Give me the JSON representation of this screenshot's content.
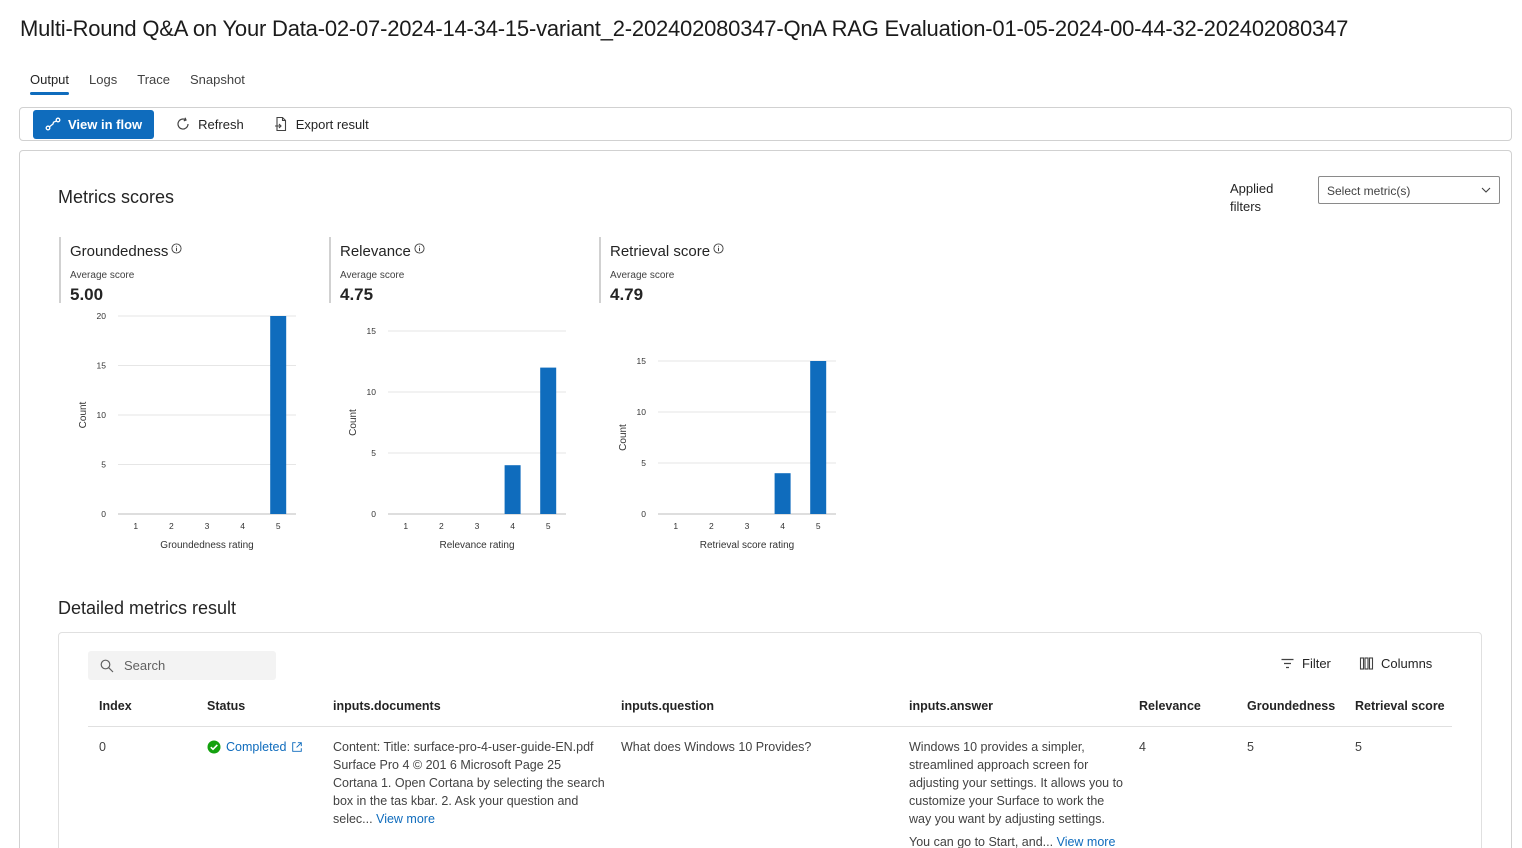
{
  "title": "Multi-Round Q&A on Your Data-02-07-2024-14-34-15-variant_2-202402080347-QnA RAG Evaluation-01-05-2024-00-44-32-202402080347",
  "tabs": [
    {
      "label": "Output",
      "active": true
    },
    {
      "label": "Logs",
      "active": false
    },
    {
      "label": "Trace",
      "active": false
    },
    {
      "label": "Snapshot",
      "active": false
    }
  ],
  "toolbar": {
    "view_in_flow": "View in flow",
    "refresh": "Refresh",
    "export": "Export result"
  },
  "metrics_section": {
    "title": "Metrics scores",
    "filters_label_line1": "Applied",
    "filters_label_line2": "filters",
    "select_placeholder": "Select metric(s)"
  },
  "metric_cards": [
    {
      "name": "Groundedness",
      "sub": "Average score",
      "value": "5.00"
    },
    {
      "name": "Relevance",
      "sub": "Average score",
      "value": "4.75"
    },
    {
      "name": "Retrieval score",
      "sub": "Average score",
      "value": "4.79"
    }
  ],
  "chart_data": [
    {
      "type": "bar",
      "categories": [
        "1",
        "2",
        "3",
        "4",
        "5"
      ],
      "values": [
        0,
        0,
        0,
        0,
        20
      ],
      "xlabel": "Groundedness rating",
      "ylabel": "Count",
      "ylim": [
        0,
        20
      ],
      "yticks": [
        0,
        5,
        10,
        15,
        20
      ],
      "color": "#0f6cbd"
    },
    {
      "type": "bar",
      "categories": [
        "1",
        "2",
        "3",
        "4",
        "5"
      ],
      "values": [
        0,
        0,
        0,
        4,
        12
      ],
      "xlabel": "Relevance rating",
      "ylabel": "Count",
      "ylim": [
        0,
        15
      ],
      "yticks": [
        0,
        5,
        10,
        15
      ],
      "color": "#0f6cbd"
    },
    {
      "type": "bar",
      "categories": [
        "1",
        "2",
        "3",
        "4",
        "5"
      ],
      "values": [
        0,
        0,
        0,
        4,
        15
      ],
      "xlabel": "Retrieval score rating",
      "ylabel": "Count",
      "ylim": [
        0,
        15
      ],
      "yticks": [
        0,
        5,
        10,
        15
      ],
      "color": "#0f6cbd"
    }
  ],
  "detail_section": {
    "title": "Detailed metrics result",
    "search_placeholder": "Search",
    "filter": "Filter",
    "columns": "Columns"
  },
  "table": {
    "headers": [
      "Index",
      "Status",
      "inputs.documents",
      "inputs.question",
      "inputs.answer",
      "Relevance",
      "Groundedness",
      "Retrieval score"
    ],
    "rows": [
      {
        "index": "0",
        "status": "Completed",
        "documents": "Content: Title: surface-pro-4-user-guide-EN.pdf Surface Pro 4 © 201 6 Microsoft Page 25 Cortana 1. Open Cortana by selecting the search box in the tas kbar. 2. Ask your question and selec...",
        "question": "What does Windows 10 Provides?",
        "answer": "Windows 10 provides a simpler, streamlined approach screen for adjusting your settings. It allows you to customize your Surface to work the way you want by adjusting settings.",
        "answer_more": "You can go to Start, and...",
        "relevance": "4",
        "groundedness": "5",
        "retrieval": "5",
        "view_more": "View more"
      }
    ]
  }
}
